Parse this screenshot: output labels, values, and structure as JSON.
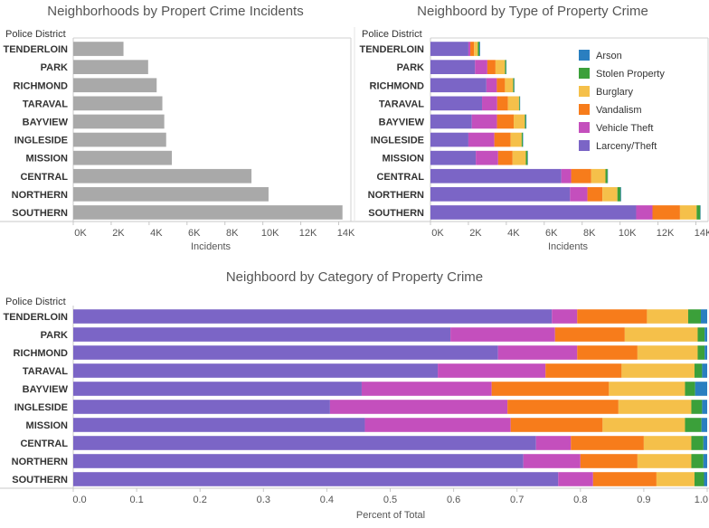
{
  "colors": {
    "Larceny/Theft": "#7b65c6",
    "Vehicle Theft": "#c44fbd",
    "Vandalism": "#f77c1b",
    "Burglary": "#f5c04a",
    "Stolen Property": "#3ba03a",
    "Arson": "#2a7fc0",
    "total_bar": "#a9a9a9"
  },
  "chart_data": [
    {
      "type": "bar",
      "orientation": "horizontal",
      "title": "Neighborhoods by Propert Crime Incidents",
      "ylabel": "Police District",
      "xlabel": "Incidents",
      "xlim": [
        0,
        14500
      ],
      "xticks": [
        0,
        2000,
        4000,
        6000,
        8000,
        10000,
        12000,
        14000
      ],
      "xtick_labels": [
        "0K",
        "2K",
        "4K",
        "6K",
        "8K",
        "10K",
        "12K",
        "14K"
      ],
      "categories": [
        "TENDERLOIN",
        "PARK",
        "RICHMOND",
        "TARAVAL",
        "BAYVIEW",
        "INGLESIDE",
        "MISSION",
        "CENTRAL",
        "NORTHERN",
        "SOUTHERN"
      ],
      "values": [
        2650,
        3950,
        4400,
        4700,
        4800,
        4900,
        5200,
        9400,
        10300,
        14200
      ]
    },
    {
      "type": "bar",
      "orientation": "horizontal",
      "stacked": true,
      "title": "Neighboord by Type of Property Crime",
      "ylabel": "Police District",
      "xlabel": "Incidents",
      "xlim": [
        0,
        14500
      ],
      "xticks": [
        0,
        2000,
        4000,
        6000,
        8000,
        10000,
        12000,
        14000
      ],
      "xtick_labels": [
        "0K",
        "2K",
        "4K",
        "6K",
        "8K",
        "10K",
        "12K",
        "14K"
      ],
      "categories": [
        "TENDERLOIN",
        "PARK",
        "RICHMOND",
        "TARAVAL",
        "BAYVIEW",
        "INGLESIDE",
        "MISSION",
        "CENTRAL",
        "NORTHERN",
        "SOUTHERN"
      ],
      "legend": [
        "Arson",
        "Stolen Property",
        "Burglary",
        "Vandalism",
        "Vehicle Theft",
        "Larceny/Theft"
      ],
      "legend_position": "top-right",
      "series": [
        {
          "name": "Larceny/Theft",
          "values": [
            2000,
            2350,
            2950,
            2720,
            2180,
            2000,
            2390,
            6900,
            7360,
            10850
          ]
        },
        {
          "name": "Vehicle Theft",
          "values": [
            100,
            650,
            550,
            800,
            1330,
            1370,
            1180,
            520,
            920,
            860
          ]
        },
        {
          "name": "Vandalism",
          "values": [
            200,
            430,
            430,
            570,
            880,
            860,
            760,
            1060,
            790,
            1450
          ]
        },
        {
          "name": "Burglary",
          "values": [
            200,
            500,
            430,
            580,
            590,
            580,
            700,
            750,
            790,
            880
          ]
        },
        {
          "name": "Stolen Property",
          "values": [
            80,
            60,
            50,
            40,
            50,
            60,
            90,
            110,
            170,
            190
          ]
        },
        {
          "name": "Arson",
          "values": [
            40,
            20,
            20,
            20,
            30,
            20,
            20,
            20,
            30,
            20
          ]
        }
      ]
    },
    {
      "type": "bar",
      "orientation": "horizontal",
      "stacked": true,
      "normalized": true,
      "title": "Neighboord by Category of Property Crime",
      "ylabel": "Police District",
      "xlabel": "Percent of Total",
      "xlim": [
        0,
        1.0
      ],
      "xticks": [
        0,
        0.1,
        0.2,
        0.3,
        0.4,
        0.5,
        0.6,
        0.7,
        0.8,
        0.9,
        1.0
      ],
      "xtick_labels": [
        "0.0",
        "0.1",
        "0.2",
        "0.3",
        "0.4",
        "0.5",
        "0.6",
        "0.7",
        "0.8",
        "0.9",
        "1.0"
      ],
      "categories": [
        "TENDERLOIN",
        "PARK",
        "RICHMOND",
        "TARAVAL",
        "BAYVIEW",
        "INGLESIDE",
        "MISSION",
        "CENTRAL",
        "NORTHERN",
        "SOUTHERN"
      ],
      "series": [
        {
          "name": "Larceny/Theft",
          "values": [
            0.755,
            0.595,
            0.67,
            0.575,
            0.455,
            0.405,
            0.46,
            0.73,
            0.71,
            0.765
          ]
        },
        {
          "name": "Vehicle Theft",
          "values": [
            0.04,
            0.165,
            0.125,
            0.17,
            0.205,
            0.28,
            0.23,
            0.055,
            0.09,
            0.055
          ]
        },
        {
          "name": "Vandalism",
          "values": [
            0.11,
            0.11,
            0.095,
            0.12,
            0.185,
            0.175,
            0.145,
            0.115,
            0.09,
            0.1
          ]
        },
        {
          "name": "Burglary",
          "values": [
            0.065,
            0.115,
            0.095,
            0.115,
            0.12,
            0.115,
            0.13,
            0.075,
            0.085,
            0.06
          ]
        },
        {
          "name": "Stolen Property",
          "values": [
            0.02,
            0.011,
            0.011,
            0.012,
            0.016,
            0.017,
            0.026,
            0.019,
            0.019,
            0.015
          ]
        },
        {
          "name": "Arson",
          "values": [
            0.01,
            0.004,
            0.004,
            0.008,
            0.019,
            0.008,
            0.009,
            0.006,
            0.006,
            0.005
          ]
        }
      ]
    }
  ]
}
